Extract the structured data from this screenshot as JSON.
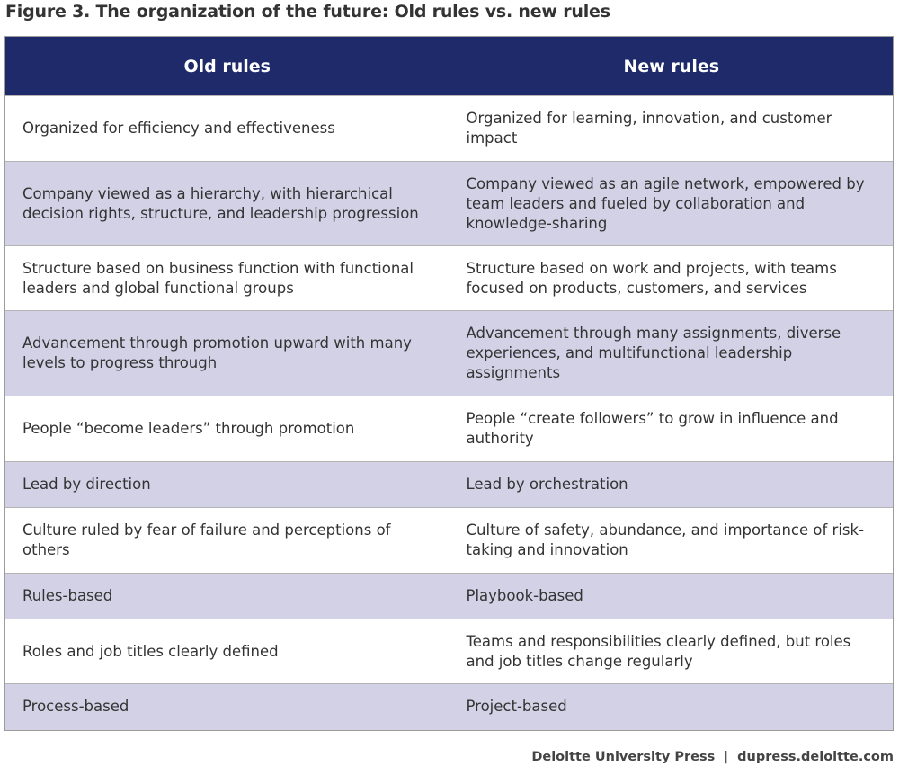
{
  "figure": {
    "title": "Figure 3. The organization of the future: Old rules vs. new rules"
  },
  "table": {
    "headers": [
      "Old rules",
      "New rules"
    ],
    "rows": [
      {
        "old": "Organized for efficiency and effectiveness",
        "new": "Organized for learning, innovation, and customer impact"
      },
      {
        "old": "Company viewed as a hierarchy, with hierarchical decision rights, structure, and leadership progression",
        "new": "Company viewed as an agile network, empowered by team leaders and fueled by collaboration and knowledge-sharing"
      },
      {
        "old": "Structure based on business function with functional leaders and global functional groups",
        "new": "Structure based on work and projects, with teams focused on products, customers, and services"
      },
      {
        "old": "Advancement through promotion upward with many levels to progress through",
        "new": "Advancement through many assignments, diverse experiences, and multifunctional leadership assignments"
      },
      {
        "old": "People “become leaders” through promotion",
        "new": "People “create followers” to grow in influence and authority"
      },
      {
        "old": "Lead by direction",
        "new": "Lead by orchestration"
      },
      {
        "old": "Culture ruled by fear of failure and perceptions of others",
        "new": "Culture of safety, abundance, and importance of risk-taking and innovation"
      },
      {
        "old": "Rules-based",
        "new": "Playbook-based"
      },
      {
        "old": "Roles and job titles clearly defined",
        "new": "Teams and responsibilities clearly defined, but roles and job titles change regularly"
      },
      {
        "old": "Process-based",
        "new": "Project-based"
      }
    ]
  },
  "footer": {
    "publisher": "Deloitte University Press",
    "separator": "|",
    "url": "dupress.deloitte.com"
  },
  "colors": {
    "header_bg": "#1f2a6b",
    "shaded_row": "#d3d1e6",
    "text": "#333333"
  }
}
